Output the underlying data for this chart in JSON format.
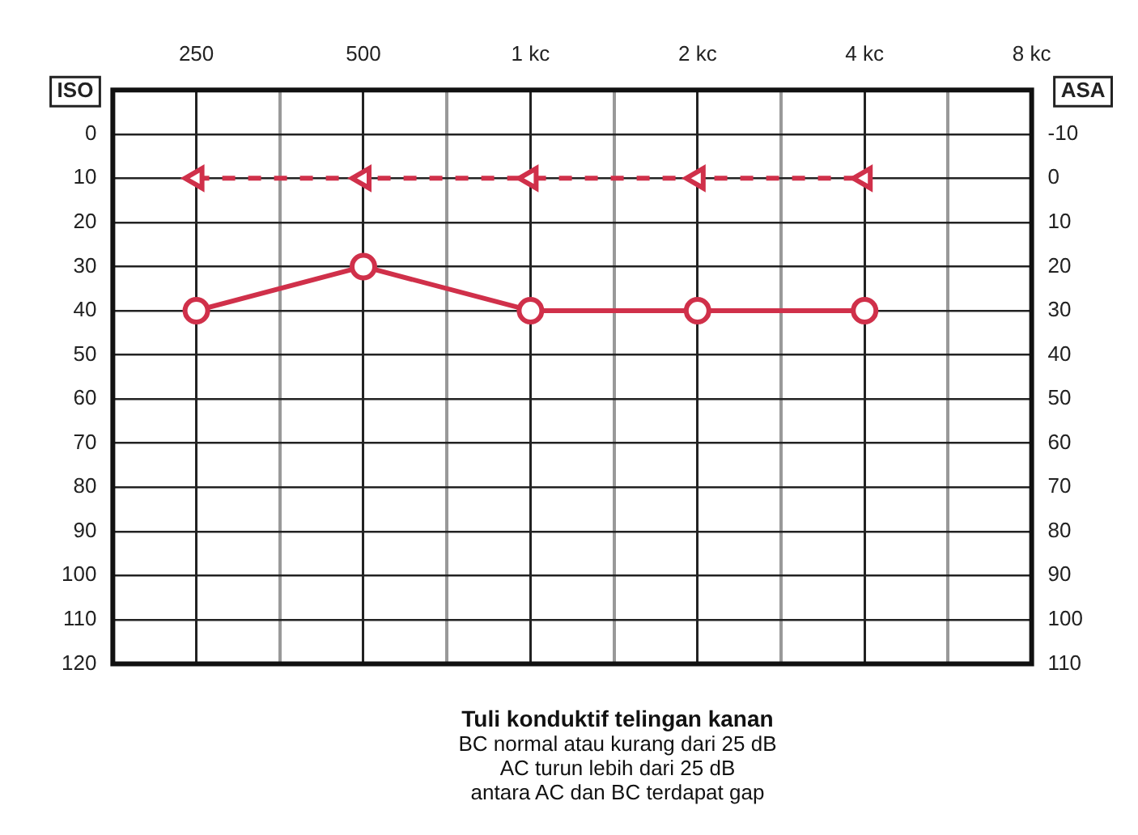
{
  "chart_data": {
    "type": "line",
    "title": "Tuli konduktif telingan kanan",
    "annotations": [
      "BC normal atau kurang dari 25 dB",
      "AC turun lebih dari 25 dB",
      "antara AC dan BC terdapat gap"
    ],
    "ylabel": "ISO",
    "y2label": "ASA",
    "categories": [
      null,
      "250",
      null,
      "500",
      null,
      "1 kc",
      null,
      "2 kc",
      null,
      "4 kc",
      null,
      "8 kc"
    ],
    "ylim": [
      120,
      -10
    ],
    "yticks": [
      0,
      10,
      20,
      30,
      40,
      50,
      60,
      70,
      80,
      90,
      100,
      110,
      120
    ],
    "y2lim": [
      110,
      -20
    ],
    "y2ticks": [
      -10,
      0,
      10,
      20,
      30,
      40,
      50,
      60,
      70,
      80,
      90,
      100,
      110
    ],
    "grid": true,
    "series": [
      {
        "color": "#d0304a",
        "values": [
          null,
          40,
          null,
          30,
          null,
          40,
          null,
          40,
          null,
          40,
          null,
          null
        ],
        "marker": "circle",
        "line_style": "solid"
      },
      {
        "color": "#d0304a",
        "values": [
          null,
          10,
          null,
          10,
          null,
          10,
          null,
          10,
          null,
          10,
          null,
          null
        ],
        "marker": "triangle",
        "line_style": "dashed"
      }
    ]
  }
}
